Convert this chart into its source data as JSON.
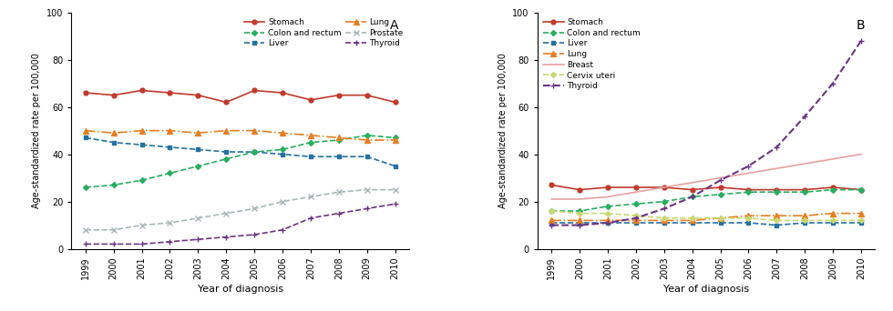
{
  "years": [
    1999,
    2000,
    2001,
    2002,
    2003,
    2004,
    2005,
    2006,
    2007,
    2008,
    2009,
    2010
  ],
  "panel_A": {
    "stomach": [
      66,
      65,
      67,
      66,
      65,
      62,
      67,
      66,
      63,
      65,
      65,
      62
    ],
    "liver": [
      47,
      45,
      44,
      43,
      42,
      41,
      41,
      40,
      39,
      39,
      39,
      35
    ],
    "prostate": [
      8,
      8,
      10,
      11,
      13,
      15,
      17,
      20,
      22,
      24,
      25,
      25
    ],
    "colon_rectum": [
      26,
      27,
      29,
      32,
      35,
      38,
      41,
      42,
      45,
      46,
      48,
      47
    ],
    "lung": [
      50,
      49,
      50,
      50,
      49,
      50,
      50,
      49,
      48,
      47,
      46,
      46
    ],
    "thyroid": [
      2,
      2,
      2,
      3,
      4,
      5,
      6,
      8,
      13,
      15,
      17,
      19
    ],
    "colors": {
      "stomach": "#c0392b",
      "liver": "#2471a3",
      "prostate": "#aab7b8",
      "colon_rectum": "#27ae60",
      "lung": "#e67e22",
      "thyroid": "#6c3483"
    }
  },
  "panel_B": {
    "stomach": [
      27,
      25,
      26,
      26,
      26,
      25,
      26,
      25,
      25,
      25,
      26,
      25
    ],
    "colon_rectum": [
      16,
      16,
      18,
      19,
      20,
      22,
      23,
      24,
      24,
      24,
      25,
      25
    ],
    "liver": [
      11,
      11,
      11,
      11,
      11,
      11,
      11,
      11,
      10,
      11,
      11,
      11
    ],
    "lung": [
      12,
      12,
      12,
      12,
      12,
      12,
      13,
      14,
      14,
      14,
      15,
      15
    ],
    "breast": [
      21,
      21,
      22,
      24,
      26,
      28,
      30,
      32,
      34,
      36,
      38,
      40
    ],
    "cervix_uteri": [
      16,
      15,
      15,
      14,
      13,
      13,
      13,
      13,
      12,
      12,
      12,
      12
    ],
    "thyroid": [
      10,
      10,
      11,
      13,
      17,
      22,
      29,
      35,
      43,
      56,
      70,
      88
    ],
    "colors": {
      "stomach": "#c0392b",
      "colon_rectum": "#27ae60",
      "liver": "#2471a3",
      "lung": "#e67e22",
      "breast": "#e8a0a0",
      "cervix_uteri": "#c8d870",
      "thyroid": "#6c3483"
    }
  },
  "ylabel": "Age-standardized rate per 100,000",
  "xlabel": "Year of diagnosis",
  "ylim": [
    0,
    100
  ],
  "yticks": [
    0,
    20,
    40,
    60,
    80,
    100
  ]
}
